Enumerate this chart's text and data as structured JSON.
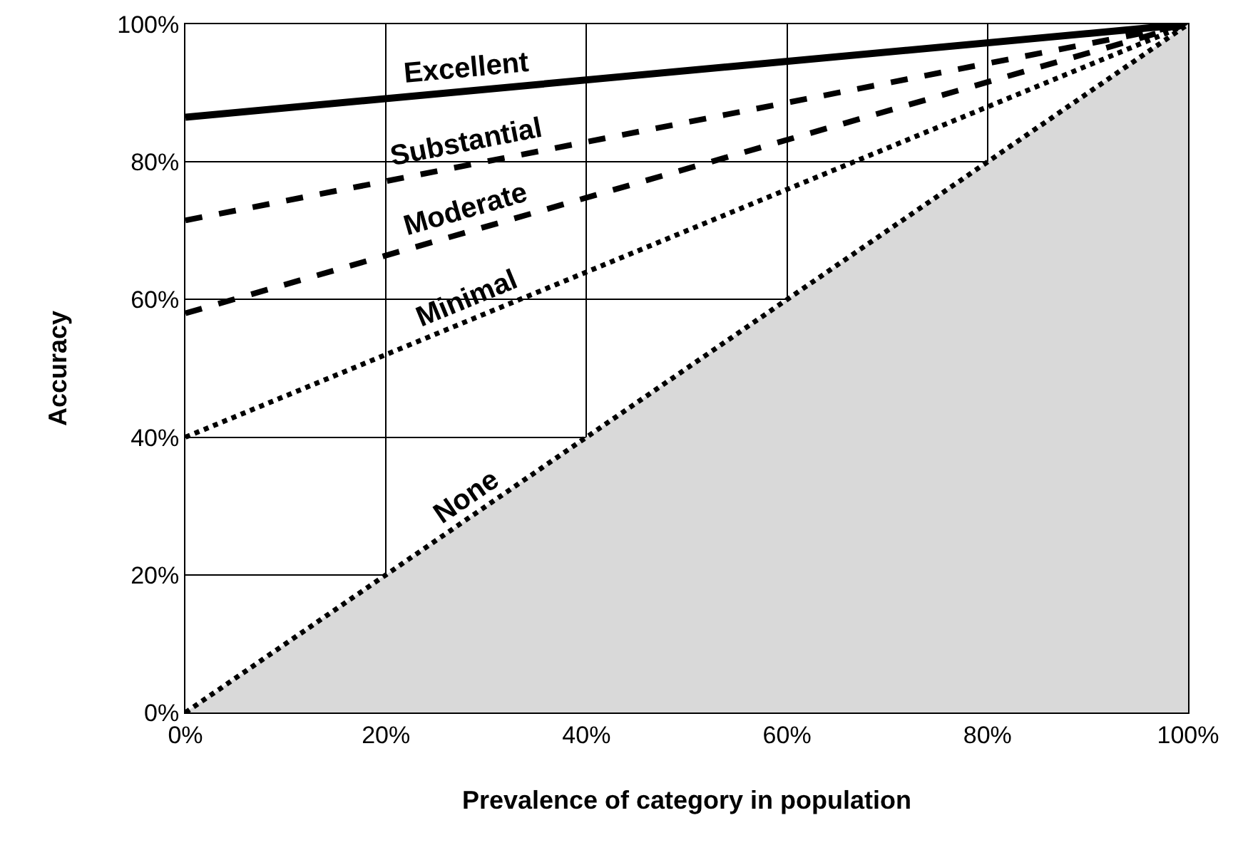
{
  "chart_data": {
    "type": "line",
    "xlabel": "Prevalence of category in population",
    "ylabel": "Accuracy",
    "x": [
      0,
      100
    ],
    "series": [
      {
        "name": "Excellent",
        "color": "#000000",
        "line_style": "solid",
        "values": [
          86.5,
          100
        ]
      },
      {
        "name": "Substantial",
        "color": "#000000",
        "line_style": "dashed",
        "values": [
          71.5,
          100
        ]
      },
      {
        "name": "Moderate",
        "color": "#000000",
        "line_style": "dashed",
        "values": [
          58,
          100
        ]
      },
      {
        "name": "Minimal",
        "color": "#000000",
        "line_style": "dotted",
        "values": [
          40,
          100
        ]
      },
      {
        "name": "None",
        "type": "area",
        "color": "#d9d9d9",
        "line_style": "dotted",
        "values": [
          0,
          100
        ]
      }
    ],
    "xlim": [
      0,
      100
    ],
    "ylim": [
      0,
      100
    ],
    "xticks": [
      {
        "value": 0,
        "label": "0%"
      },
      {
        "value": 20,
        "label": "20%"
      },
      {
        "value": 40,
        "label": "40%"
      },
      {
        "value": 60,
        "label": "60%"
      },
      {
        "value": 80,
        "label": "80%"
      },
      {
        "value": 100,
        "label": "100%"
      }
    ],
    "yticks": [
      {
        "value": 0,
        "label": "0%"
      },
      {
        "value": 20,
        "label": "20%"
      },
      {
        "value": 40,
        "label": "40%"
      },
      {
        "value": 60,
        "label": "60%"
      },
      {
        "value": 80,
        "label": "80%"
      },
      {
        "value": 100,
        "label": "100%"
      }
    ],
    "grid": true,
    "legend": false,
    "marker": "none"
  }
}
